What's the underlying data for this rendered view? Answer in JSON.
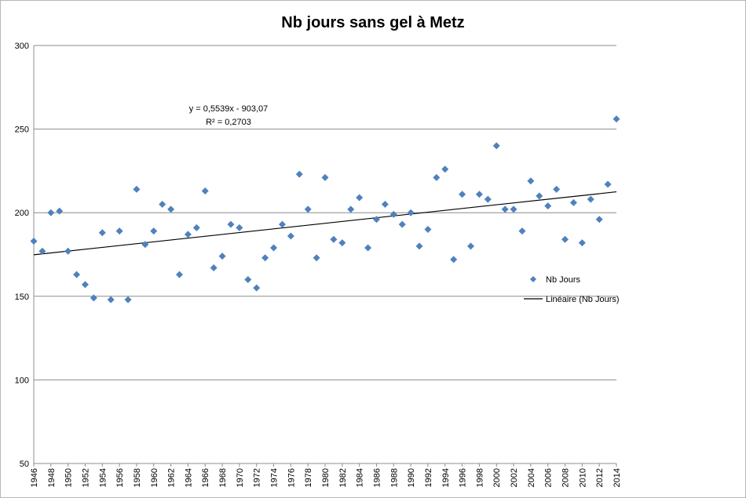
{
  "chart_data": {
    "type": "scatter",
    "title": "Nb jours sans gel à Metz",
    "xlabel": "",
    "ylabel": "",
    "xlim": [
      1946,
      2014
    ],
    "ylim": [
      50,
      300
    ],
    "y_ticks": [
      50,
      100,
      150,
      200,
      250,
      300
    ],
    "x_ticks": [
      1946,
      1948,
      1950,
      1952,
      1954,
      1956,
      1958,
      1960,
      1962,
      1964,
      1966,
      1968,
      1970,
      1972,
      1974,
      1976,
      1978,
      1980,
      1982,
      1984,
      1986,
      1988,
      1990,
      1992,
      1994,
      1996,
      1998,
      2000,
      2002,
      2004,
      2006,
      2008,
      2010,
      2012,
      2014
    ],
    "grid": true,
    "legend_position": "right",
    "colors": {
      "points": "#4f81bd",
      "trend": "#000000",
      "grid": "#8c8c8c"
    },
    "series": [
      {
        "name": "Nb Jours",
        "x": [
          1946,
          1947,
          1948,
          1949,
          1950,
          1951,
          1952,
          1953,
          1954,
          1955,
          1956,
          1957,
          1958,
          1959,
          1960,
          1961,
          1962,
          1963,
          1964,
          1965,
          1966,
          1967,
          1968,
          1969,
          1970,
          1971,
          1972,
          1973,
          1974,
          1975,
          1976,
          1977,
          1978,
          1979,
          1980,
          1981,
          1982,
          1983,
          1984,
          1985,
          1986,
          1987,
          1988,
          1989,
          1990,
          1991,
          1992,
          1993,
          1994,
          1995,
          1996,
          1997,
          1998,
          1999,
          2000,
          2001,
          2002,
          2003,
          2004,
          2005,
          2006,
          2007,
          2008,
          2009,
          2010,
          2011,
          2012,
          2013,
          2014
        ],
        "y": [
          183,
          177,
          200,
          201,
          177,
          163,
          157,
          149,
          188,
          148,
          189,
          148,
          214,
          181,
          189,
          205,
          202,
          163,
          187,
          191,
          213,
          167,
          174,
          193,
          191,
          160,
          155,
          173,
          179,
          193,
          186,
          223,
          202,
          173,
          221,
          184,
          182,
          202,
          209,
          179,
          196,
          205,
          199,
          193,
          200,
          180,
          190,
          221,
          226,
          172,
          211,
          180,
          211,
          208,
          240,
          202,
          202,
          189,
          219,
          210,
          204,
          214,
          184,
          206,
          182,
          208,
          196,
          217,
          256
        ]
      }
    ],
    "trendline": {
      "name": "Linéaire (Nb Jours)",
      "slope": 0.5539,
      "intercept": -903.07,
      "equation": "y = 0,5539x - 903,07",
      "r2": "R² = 0,2703"
    }
  }
}
